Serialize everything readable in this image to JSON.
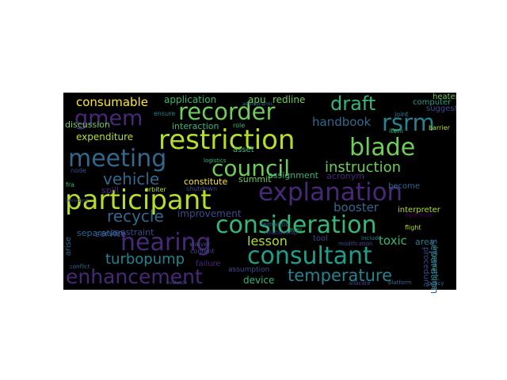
{
  "palette": [
    "#440154",
    "#482878",
    "#3e4a89",
    "#31688e",
    "#26828e",
    "#1f9e89",
    "#35b779",
    "#6ece58",
    "#b5de2b",
    "#fde725"
  ],
  "words": [
    {
      "text": "restriction",
      "color": "#b5de2b"
    },
    {
      "text": "participant",
      "color": "#b5de2b"
    },
    {
      "text": "consideration",
      "color": "#35b779"
    },
    {
      "text": "explanation",
      "color": "#482878"
    },
    {
      "text": "consultant",
      "color": "#1f9e89"
    },
    {
      "text": "council",
      "color": "#6ece58"
    },
    {
      "text": "hearing",
      "color": "#482878"
    },
    {
      "text": "recorder",
      "color": "#6ece58"
    },
    {
      "text": "meeting",
      "color": "#31688e"
    },
    {
      "text": "blade",
      "color": "#6ece58"
    },
    {
      "text": "enhancement",
      "color": "#482878"
    },
    {
      "text": "gmem",
      "color": "#482878"
    },
    {
      "text": "rsrm",
      "color": "#26828e"
    },
    {
      "text": "draft",
      "color": "#35b779"
    },
    {
      "text": "temperature",
      "color": "#26828e"
    },
    {
      "text": "instruction",
      "color": "#6ece58"
    },
    {
      "text": "recycle",
      "color": "#31688e"
    },
    {
      "text": "vehicle",
      "color": "#31688e"
    },
    {
      "text": "turbopump",
      "color": "#26828e"
    },
    {
      "text": "lesson",
      "color": "#b5de2b"
    },
    {
      "text": "consumable",
      "color": "#fde725"
    },
    {
      "text": "handbook",
      "color": "#31688e"
    },
    {
      "text": "booster",
      "color": "#31688e"
    },
    {
      "text": "toxic",
      "color": "#35b779"
    },
    {
      "text": "application",
      "color": "#35b779"
    },
    {
      "text": "apu",
      "color": "#6ece58"
    },
    {
      "text": "redline",
      "color": "#6ece58"
    },
    {
      "text": "expenditure",
      "color": "#b5de2b"
    },
    {
      "text": "interaction",
      "color": "#35b779"
    },
    {
      "text": "improvement",
      "color": "#3e4a89"
    },
    {
      "text": "constraint",
      "color": "#3e4a89"
    },
    {
      "text": "device",
      "color": "#35b779"
    },
    {
      "text": "separation",
      "color": "#31688e"
    },
    {
      "text": "service",
      "color": "#3e4a89"
    },
    {
      "text": "discussion",
      "color": "#6ece58"
    },
    {
      "text": "assignment",
      "color": "#35b779"
    },
    {
      "text": "acronym",
      "color": "#482878"
    },
    {
      "text": "suggest",
      "color": "#3e4a89"
    },
    {
      "text": "computer",
      "color": "#1f9e89"
    },
    {
      "text": "heater",
      "color": "#6ece58"
    },
    {
      "text": "area",
      "color": "#26828e"
    },
    {
      "text": "tool",
      "color": "#3e4a89"
    },
    {
      "text": "asset",
      "color": "#35b779"
    },
    {
      "text": "constitute",
      "color": "#fde725"
    },
    {
      "text": "summit",
      "color": "#6ece58"
    },
    {
      "text": "spill",
      "color": "#482878"
    },
    {
      "text": "become",
      "color": "#31688e"
    },
    {
      "text": "interpreter",
      "color": "#b5de2b"
    },
    {
      "text": "failure",
      "color": "#482878"
    },
    {
      "text": "assumption",
      "color": "#3e4a89"
    },
    {
      "text": "procedure",
      "color": "#3e4a89"
    },
    {
      "text": "ensure",
      "color": "#26828e"
    },
    {
      "text": "channel",
      "color": "#3e4a89"
    },
    {
      "text": "barrier",
      "color": "#b5de2b"
    },
    {
      "text": "node",
      "color": "#3e4a89"
    },
    {
      "text": "role",
      "color": "#35b779"
    },
    {
      "text": "joint",
      "color": "#26828e"
    },
    {
      "text": "international",
      "color": "#35b779"
    },
    {
      "text": "hydraulic",
      "color": "#440154"
    },
    {
      "text": "waiver",
      "color": "#3e4a89"
    },
    {
      "text": "content",
      "color": "#3e4a89"
    },
    {
      "text": "shutdown",
      "color": "#3e4a89"
    },
    {
      "text": "semantic",
      "color": "#31688e"
    },
    {
      "text": "orbiter",
      "color": "#b5de2b"
    },
    {
      "text": "modification",
      "color": "#3e4a89"
    },
    {
      "text": "item",
      "color": "#35b779"
    },
    {
      "text": "flight",
      "color": "#b5de2b"
    },
    {
      "text": "include",
      "color": "#26828e"
    },
    {
      "text": "nmi",
      "color": "#35b779"
    },
    {
      "text": "relationship",
      "color": "#3e4a89"
    },
    {
      "text": "aerodynamic",
      "color": "#31688e"
    },
    {
      "text": "platform",
      "color": "#31688e"
    },
    {
      "text": "logistics",
      "color": "#35b779"
    },
    {
      "text": "allocate",
      "color": "#3e4a89"
    },
    {
      "text": "arise",
      "color": "#31688e"
    },
    {
      "text": "conflict",
      "color": "#31688e"
    },
    {
      "text": "fra",
      "color": "#35b779"
    },
    {
      "text": "president",
      "color": "#3e4a89"
    },
    {
      "text": "policy",
      "color": "#31688e"
    },
    {
      "text": "evaluate",
      "color": "#3e4a89"
    }
  ]
}
